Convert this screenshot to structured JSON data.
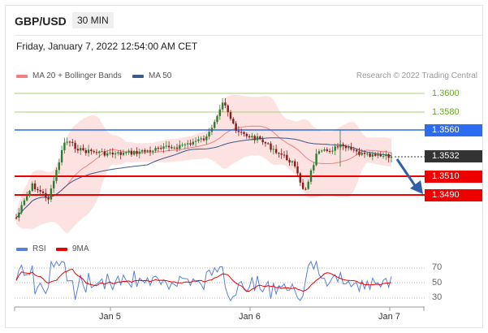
{
  "header": {
    "symbol": "GBP/USD",
    "timeframe": "30 MIN"
  },
  "datetime": "Friday, January 7, 2022 12:54:00 AM CET",
  "legend": [
    {
      "label": "MA 20 + Bollinger Bands",
      "color": "#f08080"
    },
    {
      "label": "MA 50",
      "color": "#3a5a8c"
    }
  ],
  "research": "Research © 2022 Trading Central",
  "levels": {
    "l1": "1.3600",
    "l2": "1.3580",
    "l3": "1.3560",
    "current": "1.3532",
    "l4": "1.3510",
    "l5": "1.3490"
  },
  "rsi_legend": [
    {
      "label": "RSI",
      "color": "#5b7fd6"
    },
    {
      "label": "9MA",
      "color": "#ee0000"
    }
  ],
  "rsi_levels": {
    "high": "70",
    "mid": "50",
    "low": "30"
  },
  "xaxis": {
    "d1": "Jan 5",
    "d2": "Jan 6",
    "d3": "Jan 7"
  },
  "colors": {
    "up": "#2e7d32",
    "down": "#8b1a1a",
    "band": "#fde2e2",
    "ma20": "#f08080",
    "ma50": "#3a5a8c",
    "resistance": "#2b6cf0",
    "support": "#ef0000"
  }
}
